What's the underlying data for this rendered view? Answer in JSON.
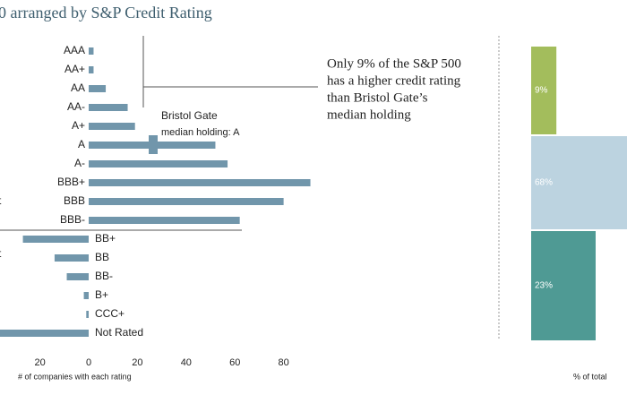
{
  "chart_data": [
    {
      "type": "bar",
      "title": "0 arranged by S&P Credit Rating",
      "categories": [
        "AAA",
        "AA+",
        "AA",
        "AA-",
        "A+",
        "A",
        "A-",
        "BBB+",
        "BBB",
        "BBB-",
        "BB+",
        "BB",
        "BB-",
        "B+",
        "CCC+",
        "Not Rated"
      ],
      "values": [
        2,
        2,
        7,
        16,
        19,
        52,
        57,
        91,
        80,
        62,
        -27,
        -14,
        -9,
        -2,
        -1,
        -37
      ],
      "color": "#7196ab",
      "xlim": [
        -36.4,
        94
      ],
      "xticks": [
        {
          "value": -20,
          "label": "20"
        },
        0,
        20,
        40,
        60,
        80
      ],
      "xlabel": "# of companies with each rating",
      "group_labels": [
        "t",
        "t"
      ],
      "median_label": [
        "Bristol Gate",
        "median holding: A"
      ],
      "annotation": [
        "Only 9% of the S&P 500",
        "has a higher credit rating",
        "than Bristol Gate’s",
        "median holding"
      ]
    },
    {
      "type": "stacked-bar",
      "values": [
        9,
        68,
        23
      ],
      "value_labels": [
        "9%",
        "68%",
        "23%"
      ],
      "colors": [
        "#a3bd5c",
        "#bcd3e0",
        "#4f9a94"
      ],
      "xlabel": "% of total"
    }
  ]
}
